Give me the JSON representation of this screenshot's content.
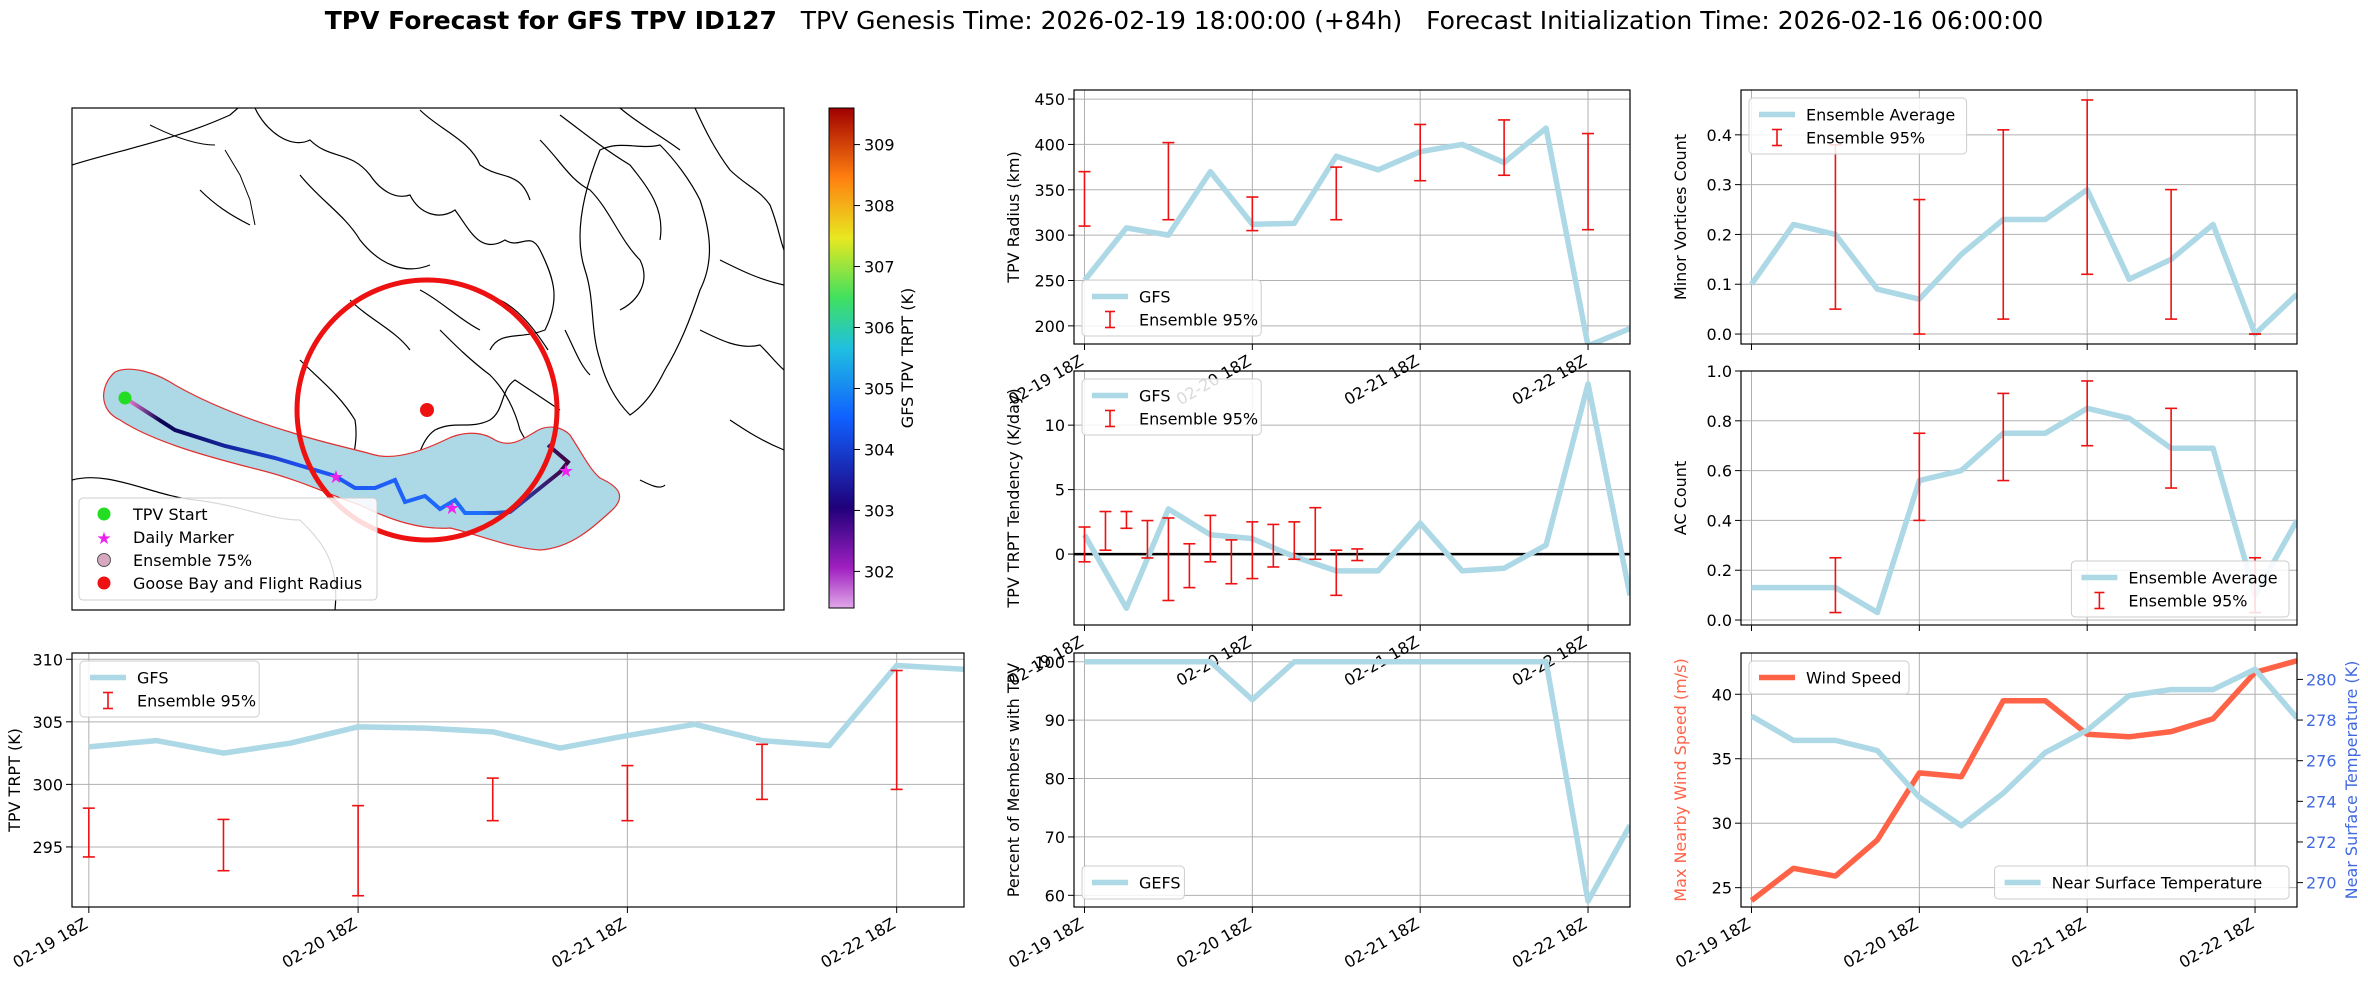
{
  "title": {
    "main": "TPV Forecast for GFS TPV ID127",
    "genesis": "TPV Genesis Time: 2026-02-19 18:00:00 (+84h)",
    "init": "Forecast Initialization Time: 2026-02-16 06:00:00"
  },
  "map": {
    "legend": [
      "TPV Start",
      "Daily Marker",
      "Ensemble 75%",
      "Goose Bay and Flight Radius"
    ],
    "colorbar": {
      "label": "GFS TPV TRPT (K)",
      "range": [
        301.4,
        309.6
      ],
      "ticks": [
        302,
        303,
        304,
        305,
        306,
        307,
        308,
        309
      ]
    },
    "colors": {
      "track_low": "#0a0050",
      "track_high": "#1e6fff",
      "ensemble_fill": "#add8e6",
      "radius": "#ee1111",
      "start": "#22dd22",
      "marker": "#ee22ee"
    }
  },
  "chart_data": [
    {
      "id": "trpt",
      "type": "line",
      "ylabel": "TPV TRPT (K)",
      "ylim": [
        290.2,
        310.5
      ],
      "yticks": [
        295,
        300,
        305,
        310
      ],
      "xticks": [
        "02-19 18Z",
        "02-20 18Z",
        "02-21 18Z",
        "02-22 18Z"
      ],
      "legend": [
        "GFS",
        "Ensemble 95%"
      ],
      "x": [
        0,
        6,
        12,
        18,
        24,
        30,
        36,
        42,
        48,
        54,
        60,
        66,
        72,
        78
      ],
      "series": [
        {
          "name": "GFS",
          "values": [
            303.0,
            303.5,
            302.5,
            303.3,
            304.6,
            304.5,
            304.2,
            302.9,
            303.9,
            304.8,
            303.5,
            303.1,
            309.5,
            309.2
          ]
        }
      ],
      "error_bars": {
        "x": [
          0,
          12,
          24,
          36,
          48,
          60,
          72
        ],
        "low": [
          294.2,
          293.1,
          291.1,
          297.1,
          297.1,
          298.8,
          299.6
        ],
        "high": [
          298.1,
          297.2,
          298.3,
          300.5,
          301.5,
          303.2,
          309.1
        ]
      }
    },
    {
      "id": "radius",
      "type": "line",
      "ylabel": "TPV Radius (km)",
      "ylim": [
        180,
        460
      ],
      "yticks": [
        200,
        250,
        300,
        350,
        400,
        450
      ],
      "xticks": [
        "02-19 18Z",
        "02-20 18Z",
        "02-21 18Z",
        "02-22 18Z"
      ],
      "legend": [
        "GFS",
        "Ensemble 95%"
      ],
      "x": [
        0,
        6,
        12,
        18,
        24,
        30,
        36,
        42,
        48,
        54,
        60,
        66,
        72,
        78
      ],
      "series": [
        {
          "name": "GFS",
          "values": [
            250,
            308,
            300,
            370,
            312,
            313,
            387,
            372,
            392,
            400,
            380,
            418,
            178,
            197
          ]
        }
      ],
      "error_bars": {
        "x": [
          0,
          12,
          24,
          36,
          48,
          60,
          72
        ],
        "low": [
          310,
          317,
          305,
          317,
          360,
          366,
          306
        ],
        "high": [
          370,
          402,
          342,
          375,
          422,
          427,
          412
        ]
      }
    },
    {
      "id": "tendency",
      "type": "line",
      "ylabel": "TPV TRPT Tendency (K/day)",
      "ylim": [
        -5.5,
        14.2
      ],
      "yticks": [
        0,
        5,
        10
      ],
      "xticks": [
        "02-19 18Z",
        "02-20 18Z",
        "02-21 18Z",
        "02-22 18Z"
      ],
      "legend": [
        "GFS",
        "Ensemble 95%"
      ],
      "x": [
        0,
        6,
        12,
        18,
        24,
        30,
        36,
        42,
        48,
        54,
        60,
        66,
        72,
        78
      ],
      "series": [
        {
          "name": "GFS",
          "values": [
            1.5,
            -4.2,
            3.5,
            1.5,
            1.2,
            -0.2,
            -1.3,
            -1.3,
            2.4,
            -1.3,
            -1.1,
            0.7,
            13.2,
            -3.2
          ]
        }
      ],
      "zero_line": 0,
      "error_bars": {
        "x": [
          0,
          3,
          6,
          9,
          12,
          15,
          18,
          21,
          24,
          27,
          30,
          33,
          36,
          39
        ],
        "low": [
          -0.6,
          0.3,
          2.0,
          -0.3,
          -3.6,
          -2.6,
          -0.6,
          -2.3,
          -1.9,
          -1.0,
          -0.4,
          -0.4,
          -3.2,
          -0.5
        ],
        "high": [
          2.1,
          3.3,
          3.3,
          2.6,
          2.8,
          0.8,
          3.0,
          1.1,
          2.5,
          2.3,
          2.5,
          3.6,
          0.3,
          0.4
        ]
      }
    },
    {
      "id": "percent",
      "type": "line",
      "ylabel": "Percent of Members with TPV",
      "ylim": [
        58,
        101.5
      ],
      "yticks": [
        60,
        70,
        80,
        90,
        100
      ],
      "xticks": [
        "02-19 18Z",
        "02-20 18Z",
        "02-21 18Z",
        "02-22 18Z"
      ],
      "legend": [
        "GEFS"
      ],
      "x": [
        0,
        6,
        12,
        18,
        24,
        30,
        36,
        42,
        48,
        54,
        60,
        66,
        72,
        78
      ],
      "series": [
        {
          "name": "GEFS",
          "values": [
            100,
            100,
            100,
            100,
            93.5,
            100,
            100,
            100,
            100,
            100,
            100,
            100,
            59,
            72
          ]
        }
      ]
    },
    {
      "id": "minor",
      "type": "line",
      "ylabel": "Minor Vortices Count",
      "ylim": [
        -0.02,
        0.49
      ],
      "yticks": [
        0.0,
        0.1,
        0.2,
        0.3,
        0.4
      ],
      "xticks": [],
      "legend": [
        "Ensemble Average",
        "Ensemble 95%"
      ],
      "x": [
        0,
        6,
        12,
        18,
        24,
        30,
        36,
        42,
        48,
        54,
        60,
        66,
        72,
        78
      ],
      "series": [
        {
          "name": "Ensemble Average",
          "values": [
            0.1,
            0.22,
            0.2,
            0.09,
            0.07,
            0.16,
            0.23,
            0.23,
            0.29,
            0.11,
            0.15,
            0.22,
            0.0,
            0.08
          ]
        }
      ],
      "error_bars": {
        "x": [
          -3,
          12,
          24,
          36,
          48,
          60,
          72
        ],
        "low": [
          0.0,
          0.05,
          0.0,
          0.03,
          0.12,
          0.03,
          0.0
        ],
        "high": [
          0.28,
          0.38,
          0.27,
          0.41,
          0.47,
          0.29,
          0.0
        ]
      }
    },
    {
      "id": "ac",
      "type": "line",
      "ylabel": "AC Count",
      "ylim": [
        -0.02,
        1.0
      ],
      "yticks": [
        0.0,
        0.2,
        0.4,
        0.6,
        0.8,
        1.0
      ],
      "xticks": [],
      "legend": [
        "Ensemble Average",
        "Ensemble 95%"
      ],
      "x": [
        0,
        6,
        12,
        18,
        24,
        30,
        36,
        42,
        48,
        54,
        60,
        66,
        72,
        78
      ],
      "series": [
        {
          "name": "Ensemble Average",
          "values": [
            0.13,
            0.13,
            0.13,
            0.03,
            0.56,
            0.6,
            0.75,
            0.75,
            0.85,
            0.81,
            0.69,
            0.69,
            0.1,
            0.4
          ]
        }
      ],
      "error_bars": {
        "x": [
          -3,
          12,
          24,
          36,
          48,
          60,
          72
        ],
        "low": [
          0.03,
          0.03,
          0.4,
          0.56,
          0.7,
          0.53,
          0.03
        ],
        "high": [
          0.22,
          0.25,
          0.75,
          0.91,
          0.96,
          0.85,
          0.25
        ]
      }
    },
    {
      "id": "wind",
      "type": "line",
      "ylabel": "Max Nearby Wind Speed (m/s)",
      "ylim": [
        23.5,
        43.2
      ],
      "yticks": [
        25,
        30,
        35,
        40
      ],
      "y2label": "Near Surface Temperature (K)",
      "y2lim": [
        268.8,
        281.3
      ],
      "y2ticks": [
        270,
        272,
        274,
        276,
        278,
        280
      ],
      "xticks": [
        "02-19 18Z",
        "02-20 18Z",
        "02-21 18Z",
        "02-22 18Z"
      ],
      "legend": [
        "Wind Speed",
        "Near Surface Temperature"
      ],
      "x": [
        0,
        6,
        12,
        18,
        24,
        30,
        36,
        42,
        48,
        54,
        60,
        66,
        72,
        78
      ],
      "series": [
        {
          "name": "Wind Speed",
          "axis": "left",
          "values": [
            24.0,
            26.5,
            25.9,
            28.7,
            33.9,
            33.6,
            39.5,
            39.5,
            36.9,
            36.7,
            37.1,
            38.1,
            41.7,
            42.6
          ]
        },
        {
          "name": "Near Surface Temperature",
          "axis": "right",
          "values": [
            278.2,
            277.0,
            277.0,
            276.5,
            274.2,
            272.8,
            274.4,
            276.4,
            277.5,
            279.2,
            279.5,
            279.5,
            280.5,
            278.1
          ]
        }
      ]
    }
  ]
}
